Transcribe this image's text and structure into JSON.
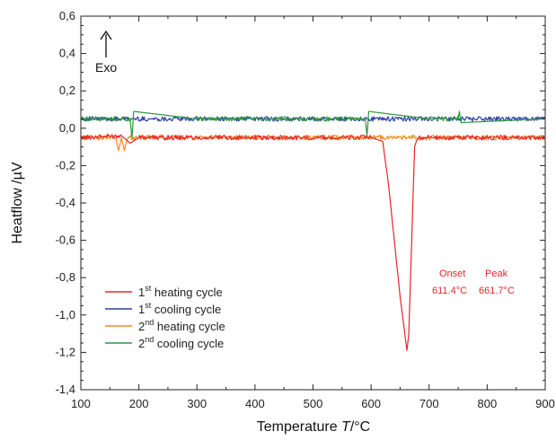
{
  "chart_data": {
    "type": "line",
    "xlabel": {
      "pre": "Temperature ",
      "italic": "T",
      "post": "/°C"
    },
    "ylabel": "Heatflow /µV",
    "xlim": [
      100,
      900
    ],
    "ylim": [
      -1.4,
      0.6
    ],
    "x_ticks": [
      100,
      200,
      300,
      400,
      500,
      600,
      700,
      800,
      900
    ],
    "y_ticks": [
      0.6,
      0.4,
      0.2,
      0.0,
      -0.2,
      -0.4,
      -0.6,
      -0.8,
      -1.0,
      -1.2,
      -1.4
    ],
    "x_tick_labels": [
      "100",
      "200",
      "300",
      "400",
      "500",
      "600",
      "700",
      "800",
      "900"
    ],
    "y_tick_labels": [
      "0,6",
      "0,4",
      "0,2",
      "0,0",
      "-0,2",
      "-0,4",
      "-0,6",
      "-0,8",
      "-1,0",
      "-1,2",
      "-1,4"
    ],
    "grid": false,
    "legend_position": "bottom-left",
    "exo_label": "Exo",
    "annotations": {
      "color": "#e8262b",
      "onset_label": "Onset",
      "peak_label": "Peak",
      "onset_value": "611.4°C",
      "peak_value": "661.7°C"
    },
    "series": [
      {
        "legend_num": "1",
        "legend_sup": "st",
        "legend_rest": " heating cycle",
        "color": "#e8262b",
        "x": [
          100,
          170,
          185,
          200,
          300,
          400,
          500,
          600,
          620,
          630,
          640,
          650,
          661.7,
          665,
          670,
          675,
          680,
          700,
          800,
          900
        ],
        "y": [
          -0.05,
          -0.04,
          -0.08,
          -0.05,
          -0.05,
          -0.05,
          -0.05,
          -0.05,
          -0.07,
          -0.3,
          -0.6,
          -0.9,
          -1.19,
          -1.1,
          -0.6,
          -0.1,
          -0.05,
          -0.05,
          -0.05,
          -0.05
        ]
      },
      {
        "legend_num": "1",
        "legend_sup": "st",
        "legend_rest": " cooling cycle",
        "color": "#2b3fa6",
        "x": [
          100,
          200,
          300,
          400,
          500,
          600,
          700,
          800,
          900
        ],
        "y": [
          0.05,
          0.05,
          0.05,
          0.05,
          0.05,
          0.05,
          0.05,
          0.05,
          0.05
        ]
      },
      {
        "legend_num": "2",
        "legend_sup": "nd",
        "legend_rest": " heating cycle",
        "color": "#f08a1c",
        "x": [
          100,
          160,
          165,
          170,
          175,
          180,
          200,
          300,
          400,
          500,
          600,
          700,
          800,
          900
        ],
        "y": [
          -0.05,
          -0.05,
          -0.12,
          -0.05,
          -0.12,
          -0.05,
          -0.05,
          -0.05,
          -0.05,
          -0.05,
          -0.05,
          -0.05,
          -0.05,
          -0.05
        ]
      },
      {
        "legend_num": "2",
        "legend_sup": "nd",
        "legend_rest": " cooling cycle",
        "color": "#2a9a3a",
        "x": [
          100,
          185,
          188,
          191,
          300,
          400,
          590,
          593,
          596,
          700,
          750,
          752,
          755,
          900
        ],
        "y": [
          0.05,
          0.05,
          -0.06,
          0.09,
          0.05,
          0.05,
          0.05,
          -0.04,
          0.09,
          0.05,
          0.05,
          0.09,
          0.03,
          0.05
        ]
      }
    ]
  }
}
